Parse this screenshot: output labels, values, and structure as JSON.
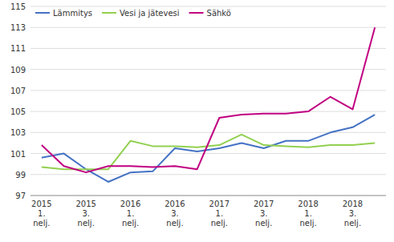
{
  "chart_data": {
    "type": "line",
    "categories": [
      "2015\n1.\nnelj.",
      null,
      "2015\n3.\nnelj.",
      null,
      "2016\n1.\nnelj.",
      null,
      "2016\n3.\nnelj.",
      null,
      "2017\n1.\nnelj.",
      null,
      "2017\n3.\nnelj.",
      null,
      "2018\n1.\nnelj.",
      null,
      "2018\n3.\nnelj.",
      null
    ],
    "series": [
      {
        "name": "Lämmitys",
        "color": "#4472c4",
        "values": [
          100.6,
          101.0,
          99.5,
          98.3,
          99.2,
          99.3,
          101.5,
          101.2,
          101.5,
          102.0,
          101.5,
          102.2,
          102.2,
          103.0,
          103.5,
          104.7
        ]
      },
      {
        "name": "Vesi ja jätevesi",
        "color": "#92d050",
        "values": [
          99.7,
          99.5,
          99.5,
          99.5,
          102.2,
          101.7,
          101.7,
          101.6,
          101.8,
          102.8,
          101.8,
          101.7,
          101.6,
          101.8,
          101.8,
          102.0
        ]
      },
      {
        "name": "Sähkö",
        "color": "#c00080",
        "values": [
          101.8,
          99.8,
          99.2,
          99.8,
          99.8,
          99.7,
          99.8,
          99.5,
          104.4,
          104.7,
          104.8,
          104.8,
          105.0,
          106.4,
          105.2,
          113.0
        ]
      }
    ],
    "ylim": [
      97,
      115
    ],
    "yticks": [
      97,
      99,
      101,
      103,
      105,
      107,
      109,
      111,
      113,
      115
    ],
    "grid": true,
    "legend": "upper left"
  }
}
